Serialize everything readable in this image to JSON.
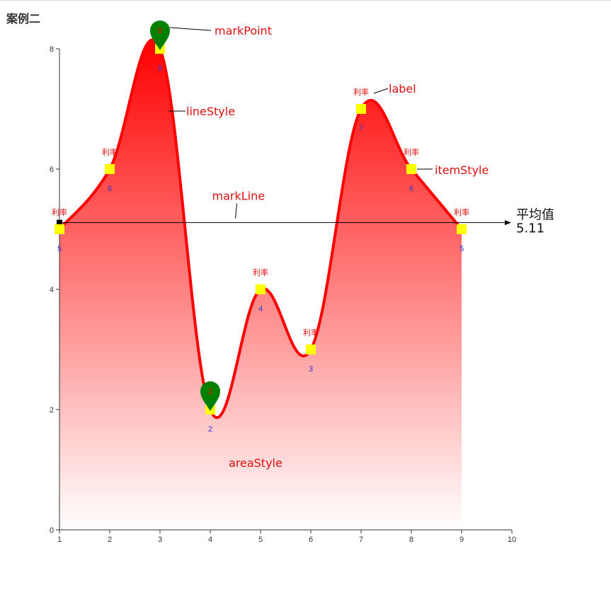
{
  "title": "案例二",
  "chart_data": {
    "type": "line",
    "smooth": true,
    "x": [
      1,
      2,
      3,
      4,
      5,
      6,
      7,
      8,
      9
    ],
    "values": [
      5,
      6,
      8,
      2,
      4,
      3,
      7,
      6,
      5
    ],
    "xlim": [
      1,
      10
    ],
    "ylim": [
      0,
      8
    ],
    "x_ticks": [
      1,
      2,
      3,
      4,
      5,
      6,
      7,
      8,
      9,
      10
    ],
    "y_ticks": [
      0,
      2,
      4,
      6,
      8
    ],
    "point_label": "利率",
    "grid": false,
    "colors": {
      "line": "#ff0000",
      "area_top": "#ff0000",
      "area_bottom": "#ffffff",
      "marker": "#ffff00",
      "pin": "#008000",
      "axis": "#333333",
      "annotation": "#e01010",
      "value_label": "#3333cc"
    },
    "mark_points": [
      {
        "x": 3,
        "y": 8
      },
      {
        "x": 4,
        "y": 2
      }
    ],
    "mark_line": {
      "name": "平均值",
      "value": "5.11"
    },
    "annotations": {
      "markPoint": "markPoint",
      "lineStyle": "lineStyle",
      "label": "label",
      "itemStyle": "itemStyle",
      "markLine": "markLine",
      "areaStyle": "areaStyle"
    }
  }
}
